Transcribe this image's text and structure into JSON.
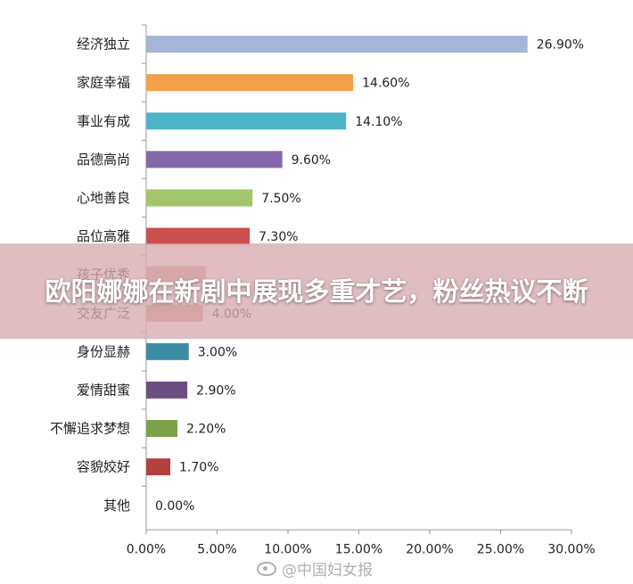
{
  "headline": "欧阳娜娜在新剧中展现多重才艺，粉丝热议不断",
  "watermark": "@中国妇女报",
  "chart_data": {
    "type": "bar",
    "orientation": "horizontal",
    "categories": [
      "经济独立",
      "家庭幸福",
      "事业有成",
      "品德高尚",
      "心地善良",
      "品位高雅",
      "孩子优秀",
      "交友广泛",
      "身份显赫",
      "爱情甜蜜",
      "不懈追求梦想",
      "容貌姣好",
      "其他"
    ],
    "values": [
      26.9,
      14.6,
      14.1,
      9.6,
      7.5,
      7.3,
      4.2,
      4.0,
      3.0,
      2.9,
      2.2,
      1.7,
      0.0
    ],
    "value_labels": [
      "26.90%",
      "14.60%",
      "14.10%",
      "9.60%",
      "7.50%",
      "7.30%",
      "",
      "4.00%",
      "3.00%",
      "2.90%",
      "2.20%",
      "1.70%",
      "0.00%"
    ],
    "colors": [
      "#a6b4d7",
      "#f4a04a",
      "#4db3c9",
      "#8468a9",
      "#a3c56a",
      "#c9504c",
      "#e39a91",
      "#d9907e",
      "#3a8da3",
      "#6b4f83",
      "#7aa049",
      "#b2403e",
      "#888888"
    ],
    "xticks": [
      "0.00%",
      "5.00%",
      "10.00%",
      "15.00%",
      "20.00%",
      "25.00%",
      "30.00%"
    ],
    "xlim": [
      0,
      30
    ],
    "title": "",
    "xlabel": "",
    "ylabel": "",
    "grid": false
  }
}
